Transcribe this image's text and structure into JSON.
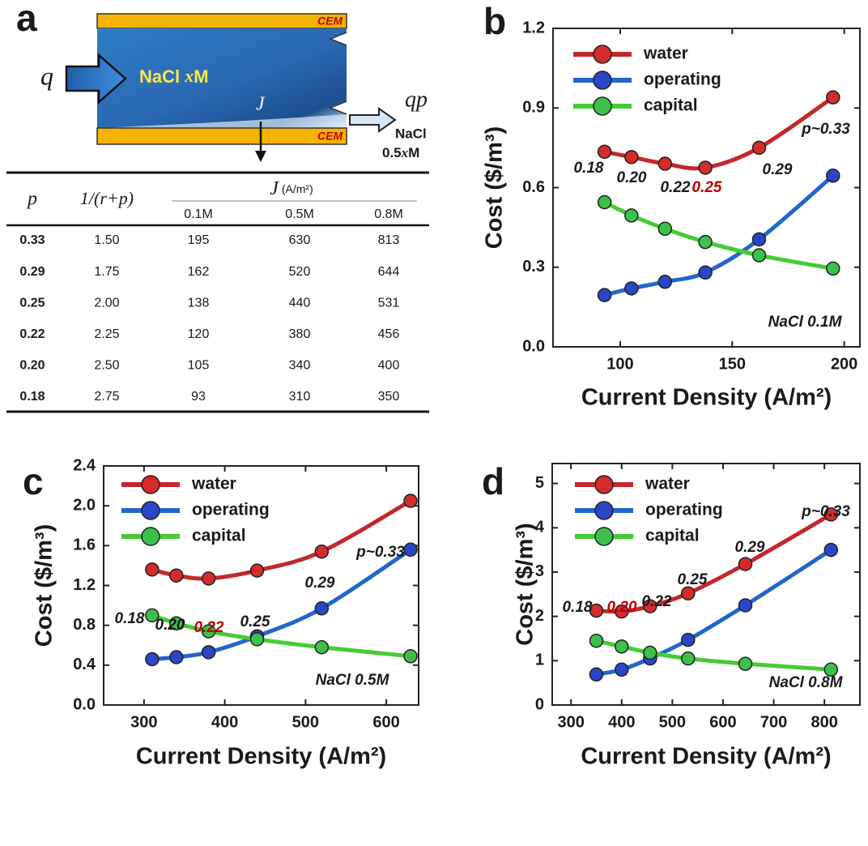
{
  "panel_labels": [
    "a",
    "b",
    "c",
    "d"
  ],
  "diagram": {
    "membrane_top": "CEM",
    "membrane_bottom": "CEM",
    "inflow": "q",
    "feed_salt": "NaCl",
    "feed_conc_var": "x",
    "feed_conc_unit": "M",
    "flux": "J",
    "outflow": "qp",
    "product_salt": "NaCl",
    "product_conc_num": "0.5",
    "product_conc_var": "x",
    "product_conc_unit": "M"
  },
  "table": {
    "header": {
      "p": "p",
      "ratio": "1/(r+p)",
      "group_var": "J",
      "group_unit": "(A/m²)",
      "sub": [
        "0.1M",
        "0.5M",
        "0.8M"
      ]
    },
    "rows": [
      [
        "0.33",
        "1.50",
        "195",
        "630",
        "813"
      ],
      [
        "0.29",
        "1.75",
        "162",
        "520",
        "644"
      ],
      [
        "0.25",
        "2.00",
        "138",
        "440",
        "531"
      ],
      [
        "0.22",
        "2.25",
        "120",
        "380",
        "456"
      ],
      [
        "0.20",
        "2.50",
        "105",
        "340",
        "400"
      ],
      [
        "0.18",
        "2.75",
        "93",
        "310",
        "350"
      ]
    ]
  },
  "chart_data": [
    {
      "type": "line",
      "xlabel": "Current Density (A/m²)",
      "ylabel": "Cost ($/m³)",
      "note": "NaCl 0.1M",
      "x": [
        93,
        105,
        120,
        138,
        162,
        195
      ],
      "xlim": [
        70,
        207
      ],
      "xticks": [
        100,
        150,
        200
      ],
      "ylim": [
        0,
        1.2
      ],
      "yticks": [
        {
          "value": 0,
          "label": "0.0"
        },
        0.3,
        0.6,
        0.9,
        1.2
      ],
      "legend": "upper left",
      "series": [
        {
          "name": "water",
          "color": "#c3282a",
          "marker_color": "#d42b2b",
          "values": [
            0.735,
            0.715,
            0.69,
            0.675,
            0.75,
            0.94
          ]
        },
        {
          "name": "operating",
          "color": "#2266cc",
          "marker_color": "#2a45c8",
          "values": [
            0.195,
            0.22,
            0.245,
            0.28,
            0.405,
            0.645
          ]
        },
        {
          "name": "capital",
          "color": "#44cc33",
          "marker_color": "#3cc04a",
          "values": [
            0.545,
            0.495,
            0.445,
            0.395,
            0.345,
            0.295
          ]
        }
      ],
      "annotations": [
        {
          "text": "0.18",
          "color": "#1a1a1a"
        },
        {
          "text": "0.20",
          "color": "#1a1a1a"
        },
        {
          "text": "0.22",
          "color": "#1a1a1a"
        },
        {
          "text": "0.25",
          "color": "#c00000"
        },
        {
          "text": "0.29",
          "color": "#1a1a1a"
        },
        {
          "text": "p~0.33",
          "color": "#1a1a1a"
        }
      ]
    },
    {
      "type": "line",
      "xlabel": "Current Density (A/m²)",
      "ylabel": "Cost ($/m³)",
      "note": "NaCl 0.5M",
      "x": [
        310,
        340,
        380,
        440,
        520,
        630
      ],
      "xlim": [
        250,
        640
      ],
      "xticks": [
        300,
        400,
        500,
        600
      ],
      "ylim": [
        0,
        2.4
      ],
      "yticks": [
        {
          "value": 0,
          "label": "0.0"
        },
        0.4,
        0.8,
        1.2,
        1.6,
        {
          "value": 2,
          "label": "2.0"
        },
        2.4
      ],
      "legend": "upper left",
      "series": [
        {
          "name": "water",
          "color": "#c3282a",
          "marker_color": "#d42b2b",
          "values": [
            1.36,
            1.3,
            1.27,
            1.35,
            1.54,
            2.05
          ]
        },
        {
          "name": "operating",
          "color": "#2266cc",
          "marker_color": "#2a45c8",
          "values": [
            0.46,
            0.48,
            0.53,
            0.69,
            0.97,
            1.56
          ]
        },
        {
          "name": "capital",
          "color": "#44cc33",
          "marker_color": "#3cc04a",
          "values": [
            0.9,
            0.82,
            0.74,
            0.66,
            0.58,
            0.49
          ]
        }
      ],
      "annotations": [
        {
          "text": "0.18",
          "color": "#1a1a1a"
        },
        {
          "text": "0.20",
          "color": "#1a1a1a"
        },
        {
          "text": "0.22",
          "color": "#c00000"
        },
        {
          "text": "0.25",
          "color": "#1a1a1a"
        },
        {
          "text": "0.29",
          "color": "#1a1a1a"
        },
        {
          "text": "p~0.33",
          "color": "#1a1a1a"
        }
      ]
    },
    {
      "type": "line",
      "xlabel": "Current Density (A/m²)",
      "ylabel": "Cost ($/m³)",
      "note": "NaCl 0.8M",
      "x": [
        350,
        400,
        456,
        531,
        644,
        813
      ],
      "xlim": [
        263,
        870
      ],
      "xticks": [
        300,
        400,
        500,
        600,
        700,
        800
      ],
      "ylim": [
        0,
        5.45
      ],
      "yticks": [
        0,
        1,
        2,
        3,
        4,
        5
      ],
      "legend": "upper left",
      "series": [
        {
          "name": "water",
          "color": "#c3282a",
          "marker_color": "#d42b2b",
          "values": [
            2.13,
            2.11,
            2.23,
            2.52,
            3.18,
            4.3
          ]
        },
        {
          "name": "operating",
          "color": "#2266cc",
          "marker_color": "#2a45c8",
          "values": [
            0.69,
            0.8,
            1.05,
            1.47,
            2.25,
            3.5
          ]
        },
        {
          "name": "capital",
          "color": "#44cc33",
          "marker_color": "#3cc04a",
          "values": [
            1.45,
            1.32,
            1.18,
            1.05,
            0.93,
            0.8
          ]
        }
      ],
      "annotations": [
        {
          "text": "0.18",
          "color": "#1a1a1a"
        },
        {
          "text": "0.20",
          "color": "#c00000"
        },
        {
          "text": "0.22",
          "color": "#1a1a1a"
        },
        {
          "text": "0.25",
          "color": "#1a1a1a"
        },
        {
          "text": "0.29",
          "color": "#1a1a1a"
        },
        {
          "text": "p~0.33",
          "color": "#1a1a1a"
        }
      ]
    }
  ]
}
